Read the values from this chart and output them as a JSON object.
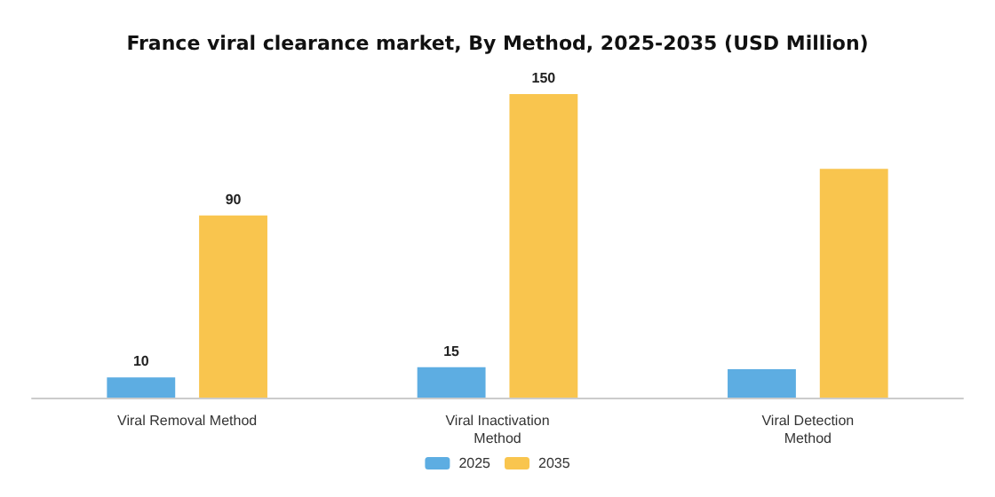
{
  "chart_data": {
    "type": "bar",
    "title": "France viral clearance market, By Method, 2025-2035 (USD Million)",
    "categories": [
      "Viral Removal Method",
      "Viral Inactivation\nMethod",
      "Viral Detection\nMethod"
    ],
    "series": [
      {
        "name": "2025",
        "color": "#5dade2",
        "values": [
          10,
          15,
          14
        ],
        "value_labels": [
          "10",
          "15",
          null
        ]
      },
      {
        "name": "2035",
        "color": "#f9c54e",
        "values": [
          90,
          150,
          113
        ],
        "value_labels": [
          "90",
          "150",
          null
        ]
      }
    ],
    "legend": "bottom",
    "grid": false
  }
}
